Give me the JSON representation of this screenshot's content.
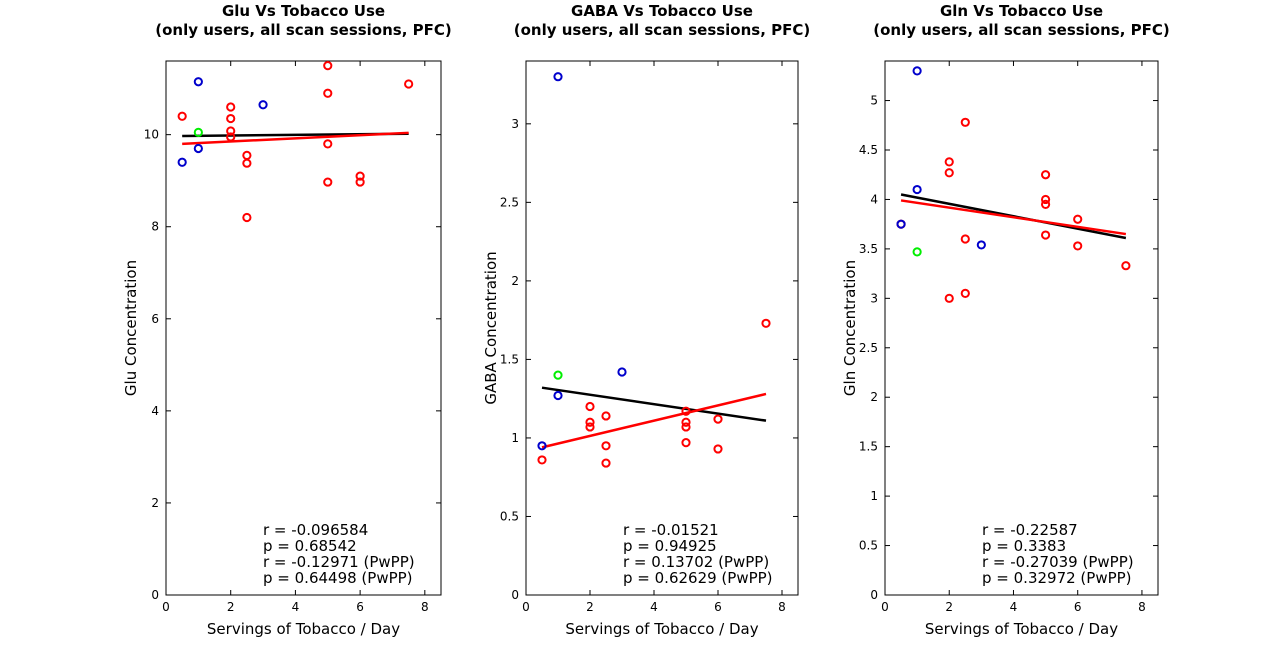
{
  "chart_data": [
    {
      "type": "scatter",
      "title": "Glu Vs Tobacco Use",
      "subtitle": "(only users, all scan sessions, PFC)",
      "xlabel": "Servings of Tobacco / Day",
      "ylabel": "Glu Concentration",
      "xlim": [
        0,
        8.5
      ],
      "ylim": [
        0,
        11.6
      ],
      "xticks": [
        0,
        2,
        4,
        6,
        8
      ],
      "yticks": [
        0,
        2,
        4,
        6,
        8,
        10
      ],
      "grid": false,
      "points": [
        {
          "x": 0.5,
          "y": 10.4,
          "color": "red"
        },
        {
          "x": 0.5,
          "y": 9.4,
          "color": "blue"
        },
        {
          "x": 1.0,
          "y": 11.15,
          "color": "blue"
        },
        {
          "x": 1.0,
          "y": 10.05,
          "color": "green"
        },
        {
          "x": 1.0,
          "y": 9.7,
          "color": "blue"
        },
        {
          "x": 2.0,
          "y": 10.6,
          "color": "red"
        },
        {
          "x": 2.0,
          "y": 10.35,
          "color": "red"
        },
        {
          "x": 2.0,
          "y": 10.08,
          "color": "red"
        },
        {
          "x": 2.0,
          "y": 9.95,
          "color": "red"
        },
        {
          "x": 2.5,
          "y": 9.55,
          "color": "red"
        },
        {
          "x": 2.5,
          "y": 9.38,
          "color": "red"
        },
        {
          "x": 2.5,
          "y": 8.2,
          "color": "red"
        },
        {
          "x": 3.0,
          "y": 10.65,
          "color": "blue"
        },
        {
          "x": 5.0,
          "y": 11.5,
          "color": "red"
        },
        {
          "x": 5.0,
          "y": 10.9,
          "color": "red"
        },
        {
          "x": 5.0,
          "y": 9.8,
          "color": "red"
        },
        {
          "x": 5.0,
          "y": 8.97,
          "color": "red"
        },
        {
          "x": 6.0,
          "y": 9.1,
          "color": "red"
        },
        {
          "x": 6.0,
          "y": 8.97,
          "color": "red"
        },
        {
          "x": 7.5,
          "y": 11.1,
          "color": "red"
        }
      ],
      "fit_lines": [
        {
          "color": "black",
          "x": [
            0.5,
            7.5
          ],
          "y": [
            9.97,
            10.02
          ]
        },
        {
          "color": "red",
          "x": [
            0.5,
            7.5
          ],
          "y": [
            9.8,
            10.04
          ]
        }
      ],
      "stats": [
        "r = -0.096584",
        "p = 0.68542",
        "r = -0.12971 (PwPP)",
        "p = 0.64498 (PwPP)"
      ]
    },
    {
      "type": "scatter",
      "title": "GABA Vs Tobacco Use",
      "subtitle": "(only users, all scan sessions, PFC)",
      "xlabel": "Servings of Tobacco / Day",
      "ylabel": "GABA Concentration",
      "xlim": [
        0,
        8.5
      ],
      "ylim": [
        0,
        3.4
      ],
      "xticks": [
        0,
        2,
        4,
        6,
        8
      ],
      "yticks": [
        0,
        0.5,
        1,
        1.5,
        2,
        2.5,
        3
      ],
      "grid": false,
      "points": [
        {
          "x": 0.5,
          "y": 0.95,
          "color": "blue"
        },
        {
          "x": 0.5,
          "y": 0.86,
          "color": "red"
        },
        {
          "x": 1.0,
          "y": 3.3,
          "color": "blue"
        },
        {
          "x": 1.0,
          "y": 1.4,
          "color": "green"
        },
        {
          "x": 1.0,
          "y": 1.27,
          "color": "blue"
        },
        {
          "x": 2.0,
          "y": 1.2,
          "color": "red"
        },
        {
          "x": 2.0,
          "y": 1.1,
          "color": "red"
        },
        {
          "x": 2.0,
          "y": 1.07,
          "color": "red"
        },
        {
          "x": 2.5,
          "y": 1.14,
          "color": "red"
        },
        {
          "x": 2.5,
          "y": 0.95,
          "color": "red"
        },
        {
          "x": 2.5,
          "y": 0.84,
          "color": "red"
        },
        {
          "x": 3.0,
          "y": 1.42,
          "color": "blue"
        },
        {
          "x": 5.0,
          "y": 1.17,
          "color": "red"
        },
        {
          "x": 5.0,
          "y": 1.1,
          "color": "red"
        },
        {
          "x": 5.0,
          "y": 1.07,
          "color": "red"
        },
        {
          "x": 5.0,
          "y": 0.97,
          "color": "red"
        },
        {
          "x": 6.0,
          "y": 1.12,
          "color": "red"
        },
        {
          "x": 6.0,
          "y": 0.93,
          "color": "red"
        },
        {
          "x": 7.5,
          "y": 1.73,
          "color": "red"
        }
      ],
      "fit_lines": [
        {
          "color": "black",
          "x": [
            0.5,
            7.5
          ],
          "y": [
            1.32,
            1.11
          ]
        },
        {
          "color": "red",
          "x": [
            0.5,
            7.5
          ],
          "y": [
            0.94,
            1.28
          ]
        }
      ],
      "stats": [
        "r = -0.01521",
        "p = 0.94925",
        "r = 0.13702 (PwPP)",
        "p = 0.62629 (PwPP)"
      ]
    },
    {
      "type": "scatter",
      "title": "Gln Vs Tobacco Use",
      "subtitle": "(only users, all scan sessions, PFC)",
      "xlabel": "Servings of Tobacco / Day",
      "ylabel": "Gln Concentration",
      "xlim": [
        0,
        8.5
      ],
      "ylim": [
        0,
        5.4
      ],
      "xticks": [
        0,
        2,
        4,
        6,
        8
      ],
      "yticks": [
        0,
        0.5,
        1,
        1.5,
        2,
        2.5,
        3,
        3.5,
        4,
        4.5,
        5
      ],
      "grid": false,
      "points": [
        {
          "x": 0.5,
          "y": 3.75,
          "color": "red"
        },
        {
          "x": 0.5,
          "y": 3.75,
          "color": "blue"
        },
        {
          "x": 1.0,
          "y": 5.3,
          "color": "blue"
        },
        {
          "x": 1.0,
          "y": 4.1,
          "color": "blue"
        },
        {
          "x": 1.0,
          "y": 3.47,
          "color": "green"
        },
        {
          "x": 2.0,
          "y": 4.38,
          "color": "red"
        },
        {
          "x": 2.0,
          "y": 4.27,
          "color": "red"
        },
        {
          "x": 2.0,
          "y": 3.0,
          "color": "red"
        },
        {
          "x": 2.5,
          "y": 4.78,
          "color": "red"
        },
        {
          "x": 2.5,
          "y": 3.6,
          "color": "red"
        },
        {
          "x": 2.5,
          "y": 3.05,
          "color": "red"
        },
        {
          "x": 3.0,
          "y": 3.54,
          "color": "blue"
        },
        {
          "x": 5.0,
          "y": 4.25,
          "color": "red"
        },
        {
          "x": 5.0,
          "y": 4.0,
          "color": "red"
        },
        {
          "x": 5.0,
          "y": 3.95,
          "color": "red"
        },
        {
          "x": 5.0,
          "y": 3.64,
          "color": "red"
        },
        {
          "x": 6.0,
          "y": 3.8,
          "color": "red"
        },
        {
          "x": 6.0,
          "y": 3.53,
          "color": "red"
        },
        {
          "x": 7.5,
          "y": 3.33,
          "color": "red"
        }
      ],
      "fit_lines": [
        {
          "color": "black",
          "x": [
            0.5,
            7.5
          ],
          "y": [
            4.05,
            3.61
          ]
        },
        {
          "color": "red",
          "x": [
            0.5,
            7.5
          ],
          "y": [
            3.99,
            3.65
          ]
        }
      ],
      "stats": [
        "r = -0.22587",
        "p = 0.3383",
        "r = -0.27039 (PwPP)",
        "p = 0.32972 (PwPP)"
      ]
    }
  ],
  "colors": {
    "red": "#ff0000",
    "blue": "#0000cc",
    "green": "#00ee00",
    "black": "#000000"
  }
}
